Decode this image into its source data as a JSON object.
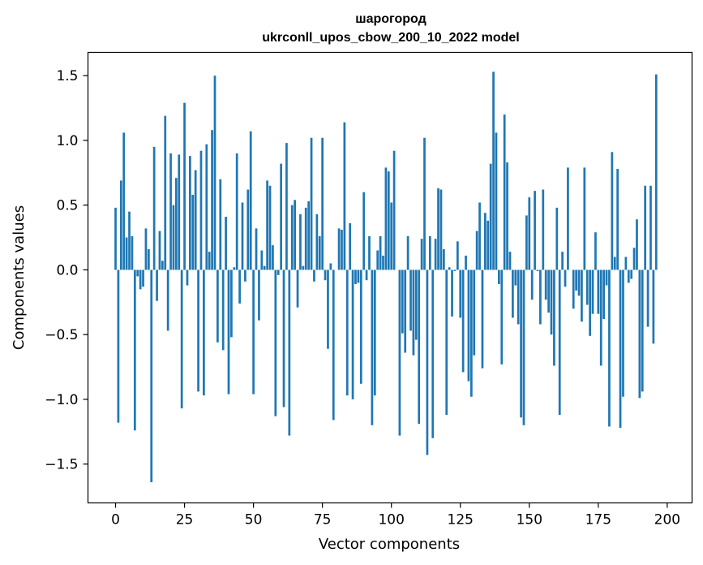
{
  "chart_data": {
    "type": "bar",
    "title": "шарогород",
    "subtitle": "ukrconll_upos_cbow_200_10_2022 model",
    "xlabel": "Vector components",
    "ylabel": "Components values",
    "xlim": [
      -10,
      209
    ],
    "ylim": [
      -1.8,
      1.68
    ],
    "xticks": [
      0,
      25,
      50,
      75,
      100,
      125,
      150,
      175,
      200
    ],
    "yticks": [
      -1.5,
      -1.0,
      -0.5,
      0.0,
      0.5,
      1.0,
      1.5
    ],
    "ytick_labels": [
      "−1.5",
      "−1.0",
      "−0.5",
      "0.0",
      "0.5",
      "1.0",
      "1.5"
    ],
    "bar_color": "#1f77b4",
    "grid": false,
    "values": [
      0.48,
      -1.18,
      0.69,
      1.06,
      0.25,
      0.45,
      0.26,
      -1.24,
      -0.05,
      -0.15,
      -0.13,
      0.32,
      0.16,
      -1.64,
      0.95,
      -0.24,
      0.3,
      0.07,
      1.19,
      -0.47,
      0.9,
      0.5,
      0.71,
      0.89,
      -1.07,
      1.29,
      -0.12,
      0.88,
      0.58,
      0.77,
      -0.94,
      0.92,
      -0.97,
      0.97,
      0.14,
      1.08,
      1.5,
      -0.56,
      0.7,
      -0.62,
      0.41,
      -0.96,
      -0.52,
      0.02,
      0.9,
      -0.26,
      0.52,
      -0.09,
      0.62,
      1.07,
      -0.96,
      0.32,
      -0.39,
      0.15,
      0.03,
      0.69,
      0.65,
      0.19,
      -1.13,
      -0.04,
      0.82,
      -1.06,
      0.98,
      -1.28,
      0.5,
      0.54,
      -0.29,
      0.43,
      0.03,
      0.48,
      0.53,
      1.02,
      -0.09,
      0.43,
      0.26,
      1.02,
      -0.08,
      -0.61,
      0.05,
      -1.16,
      0.0,
      0.32,
      0.31,
      1.14,
      -0.97,
      0.36,
      -1.0,
      -0.11,
      -0.1,
      -0.88,
      0.6,
      -0.08,
      0.26,
      -1.2,
      -0.97,
      0.15,
      0.26,
      0.11,
      0.79,
      0.76,
      0.52,
      0.92,
      0.0,
      -1.28,
      -0.49,
      -0.64,
      0.26,
      -0.47,
      -0.66,
      -0.54,
      -1.19,
      0.24,
      1.02,
      -1.43,
      0.26,
      -1.3,
      0.24,
      0.63,
      0.62,
      0.16,
      -1.12,
      0.02,
      -0.36,
      -0.01,
      0.22,
      -0.37,
      -0.79,
      0.11,
      -0.86,
      -0.98,
      -0.66,
      0.3,
      0.52,
      -0.76,
      0.44,
      0.38,
      0.82,
      1.53,
      1.06,
      -0.11,
      -0.73,
      1.2,
      0.83,
      0.14,
      -0.37,
      -0.12,
      -0.42,
      -1.14,
      -1.2,
      0.42,
      0.56,
      -0.23,
      0.61,
      -0.01,
      -0.42,
      0.62,
      -0.23,
      -0.33,
      -0.5,
      -0.74,
      0.48,
      -1.12,
      0.14,
      -0.13,
      0.79,
      0.0,
      -0.3,
      -0.16,
      -0.2,
      -0.4,
      0.79,
      -0.27,
      -0.51,
      -0.34,
      0.29,
      -0.34,
      -0.74,
      -0.38,
      -0.12,
      -1.21,
      0.91,
      0.1,
      0.78,
      -1.22,
      -0.98,
      0.1,
      -0.1,
      -0.07,
      0.17,
      0.39,
      -0.99,
      -0.94,
      0.65,
      -0.44,
      0.65,
      -0.57,
      1.51
    ]
  }
}
